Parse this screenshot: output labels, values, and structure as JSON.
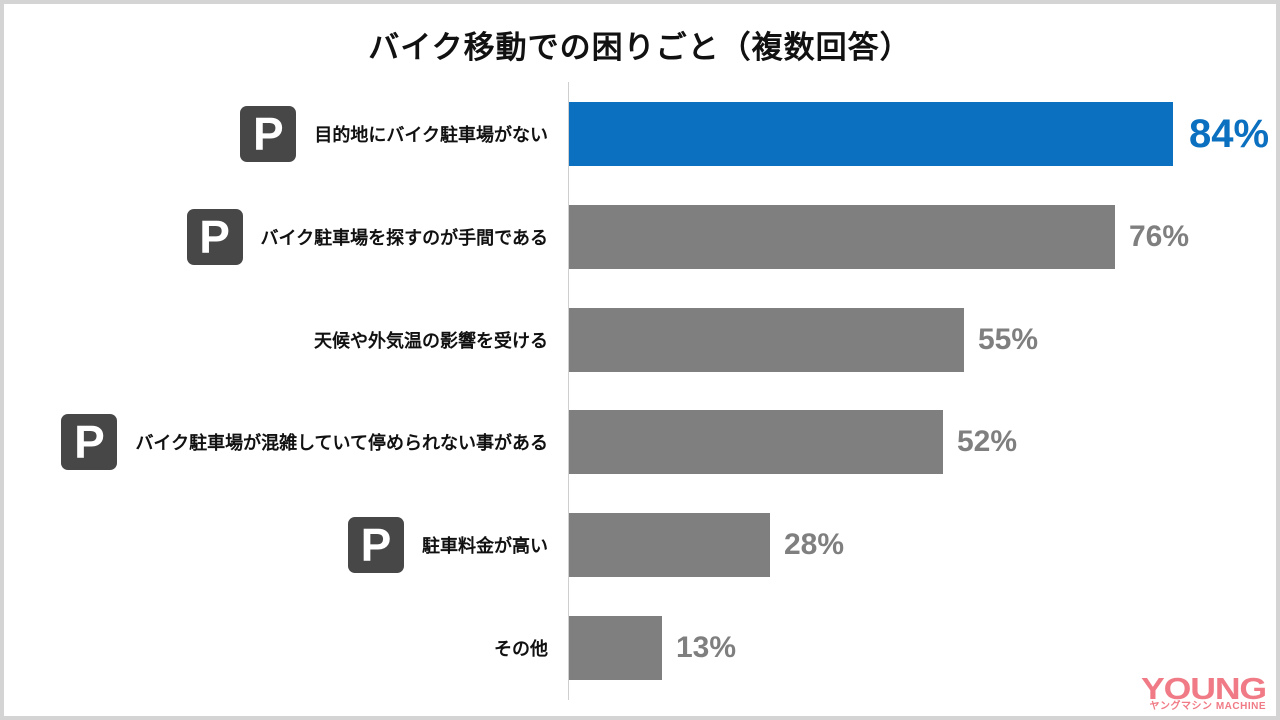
{
  "chart_data": {
    "type": "bar",
    "orientation": "horizontal",
    "title": "バイク移動での困りごと（複数回答）",
    "xlabel": "",
    "ylabel": "",
    "xlim": [
      0,
      100
    ],
    "grid": false,
    "legend": null,
    "unit": "%",
    "categories": [
      "目的地にバイク駐車場がない",
      "バイク駐車場を探すのが手間である",
      "天候や外気温の影響を受ける",
      "バイク駐車場が混雑していて停められない事がある",
      "駐車料金が高い",
      "その他"
    ],
    "values": [
      84,
      76,
      55,
      52,
      28,
      13
    ],
    "data_labels": [
      "84%",
      "76%",
      "55%",
      "52%",
      "28%",
      "13%"
    ],
    "parking_icon": [
      true,
      true,
      false,
      true,
      true,
      false
    ],
    "highlight_index": 0
  },
  "colors": {
    "highlight": "#0a70bf",
    "bar": "#7f7f7f",
    "value_default": "#7f7f7f",
    "icon_bg": "#474747"
  },
  "icons": {
    "parking": "P"
  },
  "logo": {
    "main": "YOUNG",
    "sub": "ヤングマシン MACHINE"
  }
}
